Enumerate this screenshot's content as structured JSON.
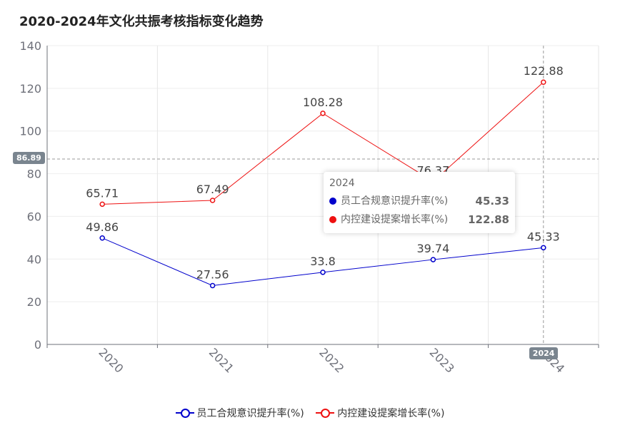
{
  "chart_data": {
    "type": "line",
    "title": "2020-2024年文化共振考核指标变化趋势",
    "categories": [
      "2020",
      "2021",
      "2022",
      "2023",
      "2024"
    ],
    "series": [
      {
        "name": "员工合规意识提升率(%)",
        "color": "#0000cc",
        "values": [
          49.86,
          27.56,
          33.8,
          39.74,
          45.33
        ]
      },
      {
        "name": "内控建设提案增长率(%)",
        "color": "#ee1111",
        "values": [
          65.71,
          67.49,
          108.28,
          76.37,
          122.88
        ]
      }
    ],
    "ylim": [
      0,
      140
    ],
    "yticks": [
      0,
      20,
      40,
      60,
      80,
      100,
      120,
      140
    ],
    "grid": true,
    "legend_position": "bottom"
  },
  "tooltip": {
    "title": "2024",
    "rows": [
      {
        "name": "员工合规意识提升率(%)",
        "value": "45.33",
        "color": "#0000cc"
      },
      {
        "name": "内控建设提案增长率(%)",
        "value": "122.88",
        "color": "#ee1111"
      }
    ]
  },
  "axis_pointer": {
    "y_value": "86.89",
    "x_value": "2024"
  }
}
